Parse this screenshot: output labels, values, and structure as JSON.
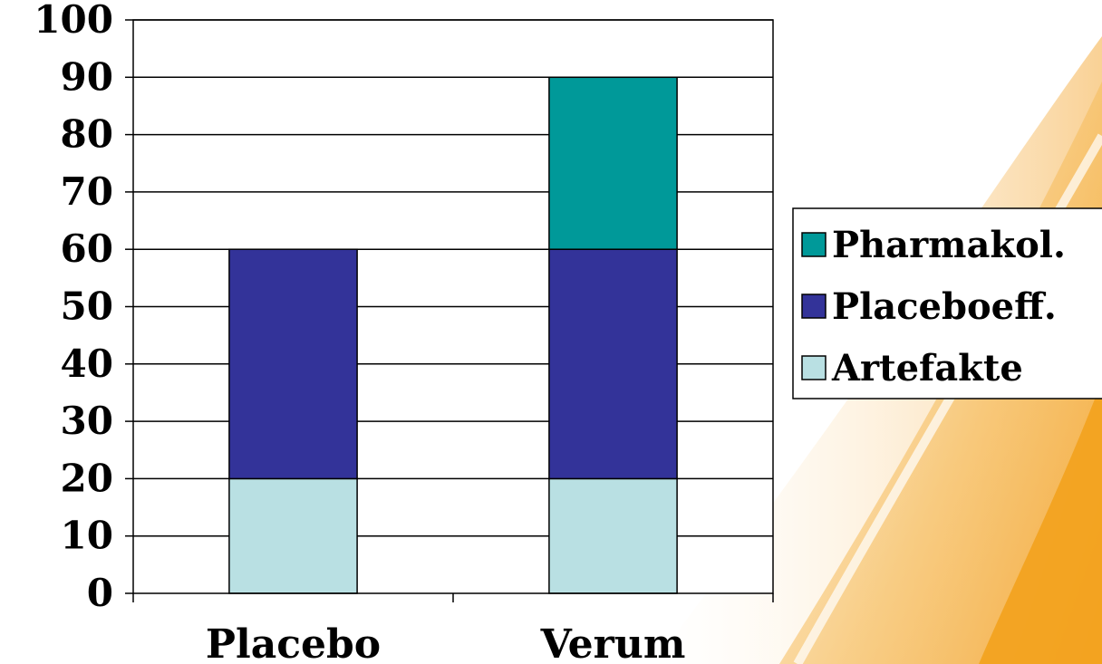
{
  "chart_data": {
    "type": "bar",
    "stacked": true,
    "categories": [
      "Placebo",
      "Verum"
    ],
    "series": [
      {
        "name": "Artefakte",
        "values": [
          20,
          20
        ],
        "color": "#b9e0e3"
      },
      {
        "name": "Placeboeff.",
        "values": [
          40,
          40
        ],
        "color": "#333399"
      },
      {
        "name": "Pharmakol.",
        "values": [
          0,
          30
        ],
        "color": "#009999"
      }
    ],
    "ylim": [
      0,
      100
    ],
    "yticks": [
      0,
      10,
      20,
      30,
      40,
      50,
      60,
      70,
      80,
      90,
      100
    ],
    "grid": true,
    "legend_position": "right",
    "legend_order": [
      "Pharmakol.",
      "Placeboeff.",
      "Artefakte"
    ],
    "title": "",
    "xlabel": "",
    "ylabel": ""
  }
}
